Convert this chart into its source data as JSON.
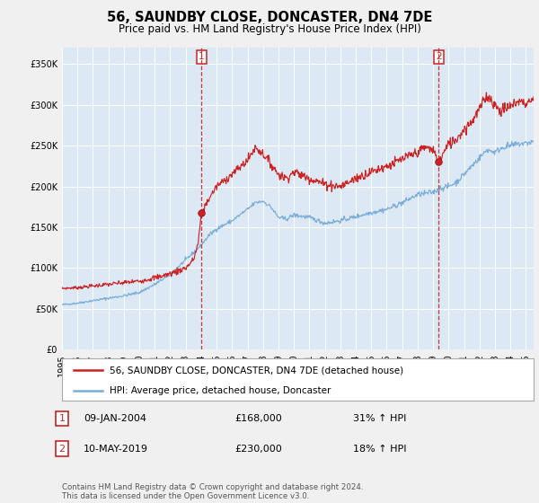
{
  "title": "56, SAUNDBY CLOSE, DONCASTER, DN4 7DE",
  "subtitle": "Price paid vs. HM Land Registry's House Price Index (HPI)",
  "bg_color": "#dce9f5",
  "plot_bg_color": "#dce9f5",
  "fig_bg_color": "#f0f0f0",
  "red_line_label": "56, SAUNDBY CLOSE, DONCASTER, DN4 7DE (detached house)",
  "blue_line_label": "HPI: Average price, detached house, Doncaster",
  "marker1_date_num": 2004.03,
  "marker1_price": 168000,
  "marker1_label": "09-JAN-2004",
  "marker1_pct": "31% ↑ HPI",
  "marker2_date_num": 2019.36,
  "marker2_price": 230000,
  "marker2_label": "10-MAY-2019",
  "marker2_pct": "18% ↑ HPI",
  "footer": "Contains HM Land Registry data © Crown copyright and database right 2024.\nThis data is licensed under the Open Government Licence v3.0.",
  "ylim": [
    0,
    370000
  ],
  "xlim_start": 1995.0,
  "xlim_end": 2025.5
}
